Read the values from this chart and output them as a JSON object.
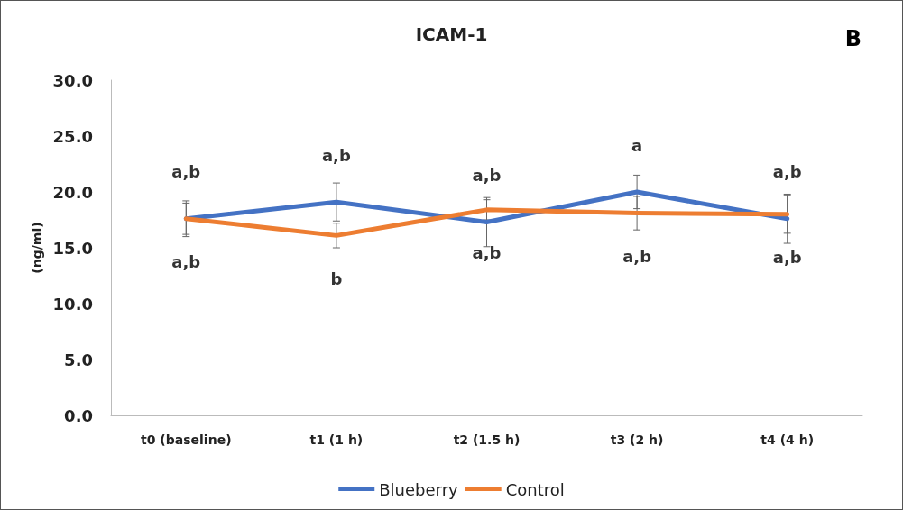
{
  "chart_data": {
    "type": "line",
    "title": "ICAM-1",
    "ylabel": "(ng/ml)",
    "categories": [
      "t0 (baseline)",
      "t1 (1 h)",
      "t2 (1.5 h)",
      "t3 (2 h)",
      "t4 (4 h)"
    ],
    "series": [
      {
        "name": "Blueberry",
        "color": "#4472c4",
        "values": [
          17.6,
          19.1,
          17.3,
          20.0,
          17.6
        ],
        "errors": [
          1.6,
          1.7,
          2.2,
          1.5,
          2.2
        ]
      },
      {
        "name": "Control",
        "color": "#ed7d31",
        "values": [
          17.6,
          16.1,
          18.4,
          18.1,
          18.0
        ],
        "errors": [
          1.4,
          1.1,
          0.9,
          1.5,
          1.7
        ]
      }
    ],
    "ylim": [
      0,
      30
    ],
    "yticks": [
      {
        "value": 0,
        "label": "0.0"
      },
      {
        "value": 5,
        "label": "5.0"
      },
      {
        "value": 10,
        "label": "10.0"
      },
      {
        "value": 15,
        "label": "15.0"
      },
      {
        "value": 20,
        "label": "20.0"
      },
      {
        "value": 25,
        "label": "25.0"
      },
      {
        "value": 30,
        "label": "30.0"
      }
    ],
    "annotations": [
      "B",
      {
        "text": "a,b",
        "x": "t0 (baseline)",
        "y": 17.6
      },
      {
        "text": "a,b",
        "x": "t1 (1 h)",
        "y": 19.1
      },
      {
        "text": "a,b",
        "x": "t2 (1.5 h)",
        "y": 17.3
      },
      {
        "text": "a",
        "x": "t3 (2 h)",
        "y": 20.0
      },
      {
        "text": "a,b",
        "x": "t4 (4 h)",
        "y": 17.6
      },
      {
        "text": "a,b",
        "x": "t0 (baseline)",
        "y": 17.6
      },
      {
        "text": "b",
        "x": "t1 (1 h)",
        "y": 16.1
      },
      {
        "text": "a,b",
        "x": "t2 (1.5 h)",
        "y": 18.4
      },
      {
        "text": "a,b",
        "x": "t3 (2 h)",
        "y": 18.1
      },
      {
        "text": "a,b",
        "x": "t4 (4 h)",
        "y": 18.0
      }
    ],
    "grid": false,
    "legend": "bottom",
    "marker": "none",
    "line_style": "solid"
  }
}
